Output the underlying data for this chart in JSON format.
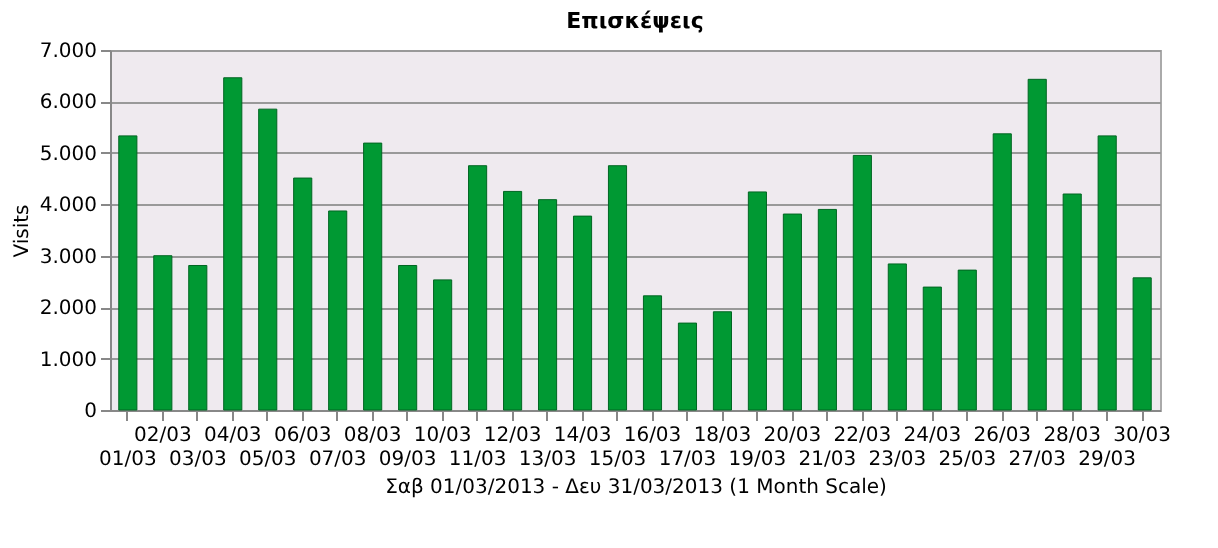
{
  "chart_data": {
    "type": "bar",
    "title": "Επισκέψεις",
    "xlabel": "Σαβ 01/03/2013 - Δευ 31/03/2013 (1 Month Scale)",
    "ylabel": "Visits",
    "categories": [
      "01/03",
      "02/03",
      "03/03",
      "04/03",
      "05/03",
      "06/03",
      "07/03",
      "08/03",
      "09/03",
      "10/03",
      "11/03",
      "12/03",
      "13/03",
      "14/03",
      "15/03",
      "16/03",
      "17/03",
      "18/03",
      "19/03",
      "20/03",
      "21/03",
      "22/03",
      "23/03",
      "24/03",
      "25/03",
      "26/03",
      "27/03",
      "28/03",
      "29/03",
      "30/03"
    ],
    "values": [
      5330,
      3000,
      2810,
      6460,
      5850,
      4510,
      3870,
      5190,
      2810,
      2530,
      4750,
      4250,
      4090,
      3770,
      4750,
      2220,
      1690,
      1910,
      4240,
      3810,
      3900,
      4950,
      2840,
      2390,
      2720,
      5370,
      6430,
      4200,
      5330,
      2570
    ],
    "color": "#009933",
    "ylim": [
      0,
      7000
    ],
    "yticks": [
      0,
      {
        "value": 1000,
        "label": "1.000"
      },
      {
        "value": 2000,
        "label": "2.000"
      },
      {
        "value": 3000,
        "label": "3.000"
      },
      {
        "value": 4000,
        "label": "4.000"
      },
      {
        "value": 5000,
        "label": "5.000"
      },
      {
        "value": 6000,
        "label": "6.000"
      },
      {
        "value": 7000,
        "label": "7.000"
      }
    ],
    "grid": "y"
  }
}
